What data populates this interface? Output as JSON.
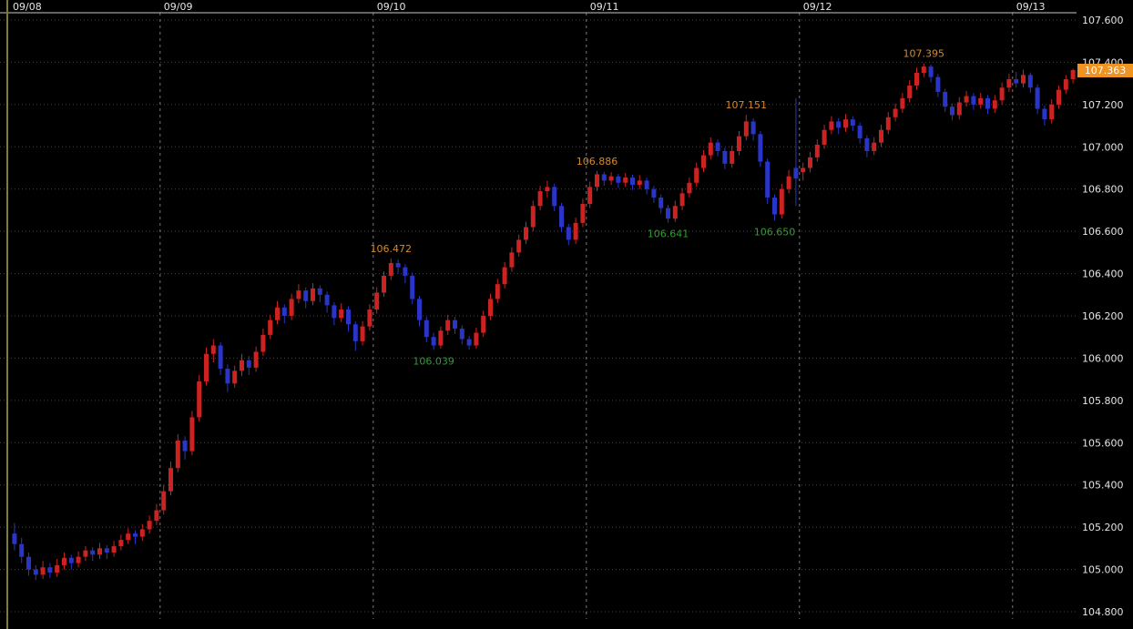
{
  "chart_data": {
    "type": "candlestick",
    "x_axis": {
      "day_labels": [
        {
          "label": "09/08",
          "candle_index": 0
        },
        {
          "label": "09/09",
          "candle_index": 21
        },
        {
          "label": "09/10",
          "candle_index": 51
        },
        {
          "label": "09/11",
          "candle_index": 81
        },
        {
          "label": "09/12",
          "candle_index": 111
        },
        {
          "label": "09/13",
          "candle_index": 141
        }
      ]
    },
    "y_axis": {
      "min": 104.8,
      "max": 107.6,
      "step": 0.2,
      "tick_labels": [
        "107.600",
        "107.400",
        "107.200",
        "107.000",
        "106.800",
        "106.600",
        "106.400",
        "106.200",
        "106.000",
        "105.800",
        "105.600",
        "105.400",
        "105.200",
        "105.000",
        "104.800"
      ]
    },
    "current_price": 107.363,
    "current_price_label": "107.363",
    "swing_annotations": [
      {
        "label": "106.472",
        "kind": "high",
        "candle_index": 53
      },
      {
        "label": "106.039",
        "kind": "low",
        "candle_index": 59
      },
      {
        "label": "106.886",
        "kind": "high",
        "candle_index": 82
      },
      {
        "label": "106.641",
        "kind": "low",
        "candle_index": 92
      },
      {
        "label": "107.151",
        "kind": "high",
        "candle_index": 103
      },
      {
        "label": "106.650",
        "kind": "low",
        "candle_index": 107
      },
      {
        "label": "107.395",
        "kind": "high",
        "candle_index": 128
      }
    ],
    "candles_ohlc": [
      [
        105.17,
        105.22,
        105.09,
        105.12
      ],
      [
        105.12,
        105.15,
        105.03,
        105.06
      ],
      [
        105.06,
        105.08,
        104.97,
        105.0
      ],
      [
        105.0,
        105.02,
        104.95,
        104.975
      ],
      [
        104.975,
        105.04,
        104.955,
        105.01
      ],
      [
        105.01,
        105.03,
        104.96,
        104.985
      ],
      [
        104.985,
        105.05,
        104.965,
        105.02
      ],
      [
        105.02,
        105.08,
        105.0,
        105.055
      ],
      [
        105.055,
        105.07,
        105.0,
        105.03
      ],
      [
        105.03,
        105.085,
        105.01,
        105.06
      ],
      [
        105.06,
        105.11,
        105.04,
        105.09
      ],
      [
        105.09,
        105.105,
        105.04,
        105.07
      ],
      [
        105.07,
        105.125,
        105.05,
        105.1
      ],
      [
        105.1,
        105.115,
        105.05,
        105.08
      ],
      [
        105.08,
        105.135,
        105.06,
        105.11
      ],
      [
        105.11,
        105.165,
        105.09,
        105.14
      ],
      [
        105.14,
        105.195,
        105.12,
        105.17
      ],
      [
        105.17,
        105.185,
        105.12,
        105.155
      ],
      [
        105.155,
        105.215,
        105.135,
        105.19
      ],
      [
        105.19,
        105.255,
        105.17,
        105.23
      ],
      [
        105.23,
        105.31,
        105.21,
        105.28
      ],
      [
        105.28,
        105.4,
        105.26,
        105.37
      ],
      [
        105.37,
        105.51,
        105.35,
        105.48
      ],
      [
        105.48,
        105.64,
        105.46,
        105.61
      ],
      [
        105.61,
        105.63,
        105.52,
        105.56
      ],
      [
        105.56,
        105.75,
        105.54,
        105.72
      ],
      [
        105.72,
        105.92,
        105.7,
        105.89
      ],
      [
        105.89,
        106.05,
        105.87,
        106.02
      ],
      [
        106.02,
        106.09,
        105.98,
        106.06
      ],
      [
        106.06,
        106.075,
        105.92,
        105.95
      ],
      [
        105.95,
        105.97,
        105.84,
        105.88
      ],
      [
        105.88,
        105.965,
        105.86,
        105.94
      ],
      [
        105.94,
        106.02,
        105.915,
        105.99
      ],
      [
        105.99,
        106.01,
        105.92,
        105.955
      ],
      [
        105.955,
        106.055,
        105.935,
        106.03
      ],
      [
        106.03,
        106.14,
        106.01,
        106.11
      ],
      [
        106.11,
        106.205,
        106.09,
        106.18
      ],
      [
        106.18,
        106.27,
        106.16,
        106.24
      ],
      [
        106.24,
        106.255,
        106.165,
        106.2
      ],
      [
        106.2,
        106.305,
        106.18,
        106.28
      ],
      [
        106.28,
        106.35,
        106.26,
        106.32
      ],
      [
        106.32,
        106.335,
        106.235,
        106.27
      ],
      [
        106.27,
        106.355,
        106.25,
        106.33
      ],
      [
        106.33,
        106.345,
        106.265,
        106.3
      ],
      [
        106.3,
        106.315,
        106.215,
        106.25
      ],
      [
        106.25,
        106.265,
        106.155,
        106.19
      ],
      [
        106.19,
        106.26,
        106.17,
        106.23
      ],
      [
        106.23,
        106.245,
        106.125,
        106.16
      ],
      [
        106.16,
        106.175,
        106.035,
        106.08
      ],
      [
        106.08,
        106.175,
        106.06,
        106.15
      ],
      [
        106.15,
        106.255,
        106.13,
        106.23
      ],
      [
        106.23,
        106.335,
        106.21,
        106.31
      ],
      [
        106.31,
        106.41,
        106.29,
        106.39
      ],
      [
        106.39,
        106.472,
        106.37,
        106.45
      ],
      [
        106.45,
        106.468,
        106.4,
        106.43
      ],
      [
        106.43,
        106.445,
        106.355,
        106.39
      ],
      [
        106.39,
        106.405,
        106.255,
        106.28
      ],
      [
        106.28,
        106.295,
        106.15,
        106.18
      ],
      [
        106.18,
        106.195,
        106.075,
        106.1
      ],
      [
        106.1,
        106.12,
        106.039,
        106.06
      ],
      [
        106.06,
        106.15,
        106.045,
        106.13
      ],
      [
        106.13,
        106.205,
        106.11,
        106.18
      ],
      [
        106.18,
        106.195,
        106.115,
        106.14
      ],
      [
        106.14,
        106.155,
        106.065,
        106.09
      ],
      [
        106.09,
        106.105,
        106.04,
        106.06
      ],
      [
        106.06,
        106.145,
        106.045,
        106.12
      ],
      [
        106.12,
        106.225,
        106.1,
        106.2
      ],
      [
        106.2,
        106.305,
        106.18,
        106.28
      ],
      [
        106.28,
        106.375,
        106.26,
        106.35
      ],
      [
        106.35,
        106.455,
        106.33,
        106.43
      ],
      [
        106.43,
        106.525,
        106.41,
        106.5
      ],
      [
        106.5,
        106.585,
        106.48,
        106.56
      ],
      [
        106.56,
        106.645,
        106.54,
        106.62
      ],
      [
        106.62,
        106.745,
        106.6,
        106.72
      ],
      [
        106.72,
        106.815,
        106.7,
        106.79
      ],
      [
        106.79,
        106.84,
        106.76,
        106.81
      ],
      [
        106.81,
        106.825,
        106.695,
        106.72
      ],
      [
        106.72,
        106.735,
        106.595,
        106.62
      ],
      [
        106.62,
        106.635,
        106.535,
        106.56
      ],
      [
        106.56,
        106.665,
        106.54,
        106.64
      ],
      [
        106.64,
        106.755,
        106.62,
        106.73
      ],
      [
        106.73,
        106.835,
        106.71,
        106.81
      ],
      [
        106.81,
        106.886,
        106.79,
        106.87
      ],
      [
        106.87,
        106.882,
        106.815,
        106.84
      ],
      [
        106.84,
        106.88,
        106.82,
        106.86
      ],
      [
        106.86,
        106.872,
        106.805,
        106.83
      ],
      [
        106.83,
        106.876,
        106.81,
        106.855
      ],
      [
        106.855,
        106.868,
        106.795,
        106.82
      ],
      [
        106.82,
        106.866,
        106.8,
        106.84
      ],
      [
        106.84,
        106.855,
        106.775,
        106.8
      ],
      [
        106.8,
        106.815,
        106.735,
        106.76
      ],
      [
        106.76,
        106.775,
        106.685,
        106.71
      ],
      [
        106.71,
        106.725,
        106.641,
        106.66
      ],
      [
        106.66,
        106.745,
        106.645,
        106.72
      ],
      [
        106.72,
        106.805,
        106.7,
        106.78
      ],
      [
        106.78,
        106.855,
        106.76,
        106.83
      ],
      [
        106.83,
        106.925,
        106.81,
        106.9
      ],
      [
        106.9,
        106.985,
        106.88,
        106.96
      ],
      [
        106.96,
        107.045,
        106.94,
        107.02
      ],
      [
        107.02,
        107.035,
        106.955,
        106.98
      ],
      [
        106.98,
        106.995,
        106.895,
        106.92
      ],
      [
        106.92,
        107.005,
        106.9,
        106.98
      ],
      [
        106.98,
        107.075,
        106.96,
        107.05
      ],
      [
        107.05,
        107.151,
        107.03,
        107.12
      ],
      [
        107.12,
        107.135,
        107.03,
        107.06
      ],
      [
        107.06,
        107.075,
        106.905,
        106.93
      ],
      [
        106.93,
        106.945,
        106.73,
        106.76
      ],
      [
        106.76,
        106.775,
        106.65,
        106.68
      ],
      [
        106.68,
        106.825,
        106.66,
        106.8
      ],
      [
        106.8,
        106.89,
        106.78,
        106.86
      ],
      [
        106.9,
        107.23,
        106.72,
        106.85
      ],
      [
        106.88,
        106.925,
        106.84,
        106.9
      ],
      [
        106.9,
        106.975,
        106.88,
        106.95
      ],
      [
        106.95,
        107.035,
        106.93,
        107.01
      ],
      [
        107.01,
        107.105,
        106.99,
        107.08
      ],
      [
        107.08,
        107.145,
        107.06,
        107.12
      ],
      [
        107.12,
        107.135,
        107.06,
        107.09
      ],
      [
        107.09,
        107.155,
        107.07,
        107.13
      ],
      [
        107.13,
        107.145,
        107.075,
        107.1
      ],
      [
        107.1,
        107.115,
        107.015,
        107.04
      ],
      [
        107.04,
        107.055,
        106.95,
        106.98
      ],
      [
        106.98,
        107.045,
        106.96,
        107.02
      ],
      [
        107.02,
        107.105,
        107.0,
        107.08
      ],
      [
        107.08,
        107.165,
        107.06,
        107.14
      ],
      [
        107.14,
        107.205,
        107.12,
        107.18
      ],
      [
        107.18,
        107.255,
        107.16,
        107.23
      ],
      [
        107.23,
        107.315,
        107.21,
        107.29
      ],
      [
        107.29,
        107.375,
        107.27,
        107.35
      ],
      [
        107.35,
        107.395,
        107.33,
        107.38
      ],
      [
        107.38,
        107.39,
        107.305,
        107.33
      ],
      [
        107.33,
        107.345,
        107.235,
        107.26
      ],
      [
        107.26,
        107.275,
        107.165,
        107.19
      ],
      [
        107.19,
        107.205,
        107.125,
        107.15
      ],
      [
        107.15,
        107.235,
        107.13,
        107.21
      ],
      [
        107.21,
        107.265,
        107.19,
        107.24
      ],
      [
        107.24,
        107.255,
        107.175,
        107.2
      ],
      [
        107.2,
        107.255,
        107.18,
        107.23
      ],
      [
        107.23,
        107.245,
        107.155,
        107.18
      ],
      [
        107.18,
        107.245,
        107.16,
        107.22
      ],
      [
        107.22,
        107.305,
        107.2,
        107.28
      ],
      [
        107.28,
        107.345,
        107.26,
        107.32
      ],
      [
        107.32,
        107.355,
        107.28,
        107.3
      ],
      [
        107.3,
        107.365,
        107.28,
        107.34
      ],
      [
        107.34,
        107.352,
        107.255,
        107.28
      ],
      [
        107.28,
        107.295,
        107.155,
        107.18
      ],
      [
        107.18,
        107.195,
        107.1,
        107.13
      ],
      [
        107.13,
        107.225,
        107.11,
        107.2
      ],
      [
        107.2,
        107.29,
        107.18,
        107.27
      ],
      [
        107.27,
        107.34,
        107.25,
        107.32
      ],
      [
        107.32,
        107.37,
        107.3,
        107.363
      ]
    ]
  },
  "colors": {
    "background": "#000000",
    "up_candle": "#cc2222",
    "down_candle": "#2a35c8",
    "grid": "#454545",
    "day_separator": "#787878",
    "axis_line": "#c8c8c8",
    "left_frame": "#7d7d2f",
    "axis_text": "#e4e4e4",
    "high_annotation": "#d7892a",
    "low_annotation": "#2ca02c",
    "price_badge_bg": "#ef9422",
    "price_badge_text": "#ffffff"
  }
}
